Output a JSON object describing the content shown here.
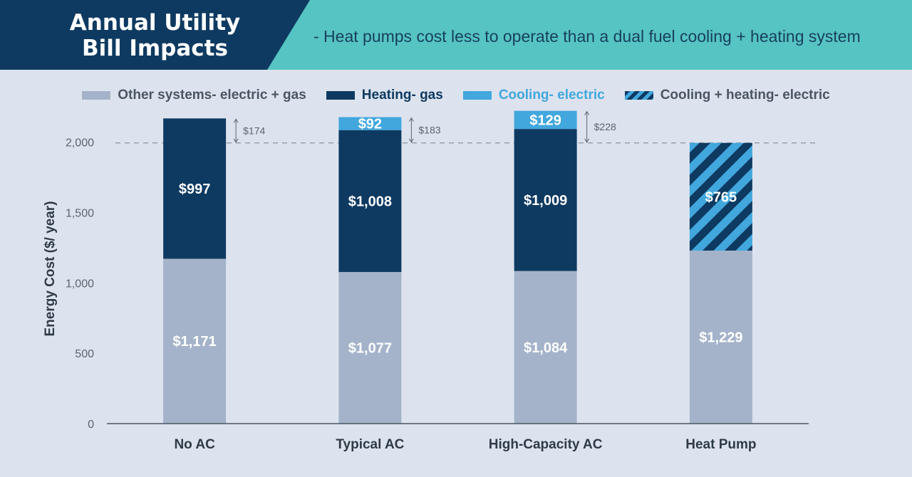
{
  "header": {
    "title_line1": "Annual Utility",
    "title_line2": "Bill Impacts",
    "subtitle": "- Heat pumps cost less to operate than a dual fuel cooling + heating system"
  },
  "colors": {
    "title_bg": "#0e3a61",
    "subtitle_bg": "#56c4c2",
    "background": "#dde3ee",
    "other": "#a4b3c9",
    "heating": "#0e3a61",
    "cooling": "#41a7dd",
    "stripe_dark": "#0e3a61",
    "stripe_light": "#41a7dd"
  },
  "legend": [
    {
      "label": "Other systems- electric + gas",
      "swatch": "other",
      "text_color": "#4a5663"
    },
    {
      "label": "Heating- gas",
      "swatch": "heating",
      "text_color": "#0e3a61"
    },
    {
      "label": "Cooling- electric",
      "swatch": "cooling",
      "text_color": "#41a7dd"
    },
    {
      "label": "Cooling + heating- electric",
      "swatch": "striped",
      "text_color": "#4a5663"
    }
  ],
  "chart_data": {
    "type": "bar",
    "stacked": true,
    "categories": [
      "No AC",
      "Typical AC",
      "High-Capacity AC",
      "Heat Pump"
    ],
    "ylabel": "Energy Cost ($/ year)",
    "ylim": [
      0,
      2200
    ],
    "yticks": [
      0,
      500,
      1000,
      1500,
      2000
    ],
    "ytick_labels": [
      "0",
      "500",
      "1,000",
      "1,500",
      "2,000"
    ],
    "reference_value": 1994,
    "series": [
      {
        "name": "Other systems- electric + gas",
        "key": "other",
        "values": [
          1171,
          1077,
          1084,
          1229
        ],
        "labels": [
          "$1,171",
          "$1,077",
          "$1,084",
          "$1,229"
        ]
      },
      {
        "name": "Heating- gas",
        "key": "heating",
        "values": [
          997,
          1008,
          1009,
          0
        ],
        "labels": [
          "$997",
          "$1,008",
          "$1,009",
          ""
        ]
      },
      {
        "name": "Cooling- electric",
        "key": "cooling",
        "values": [
          0,
          92,
          129,
          0
        ],
        "labels": [
          "",
          "$92",
          "$129",
          ""
        ]
      },
      {
        "name": "Cooling + heating- electric",
        "key": "striped",
        "values": [
          0,
          0,
          0,
          765
        ],
        "labels": [
          "",
          "",
          "",
          "$765"
        ]
      }
    ],
    "differences": [
      {
        "category": "No AC",
        "value": 174,
        "label": "$174"
      },
      {
        "category": "Typical AC",
        "value": 183,
        "label": "$183"
      },
      {
        "category": "High-Capacity AC",
        "value": 228,
        "label": "$228"
      }
    ]
  }
}
